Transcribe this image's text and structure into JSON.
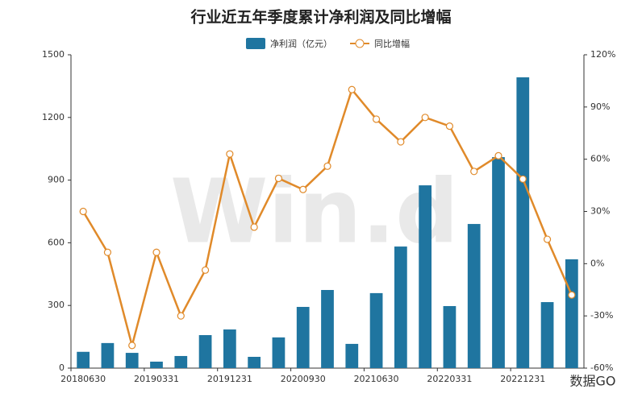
{
  "chart_data": {
    "type": "bar_line",
    "title": "行业近五年季度累计净利润及同比增幅",
    "categories": [
      "20180630",
      null,
      null,
      "20190331",
      null,
      null,
      "20191231",
      null,
      null,
      "20200930",
      null,
      null,
      "20210630",
      null,
      null,
      "20220331",
      null,
      null,
      "20221231",
      null,
      null
    ],
    "series": [
      {
        "name": "净利润（亿元）",
        "type": "bar",
        "color": "#1f75a0",
        "axis": "y",
        "values": [
          78,
          120,
          73,
          31,
          58,
          158,
          185,
          54,
          147,
          293,
          374,
          116,
          359,
          582,
          875,
          297,
          690,
          1010,
          1392,
          316,
          521
        ]
      },
      {
        "name": "同比增幅",
        "type": "line",
        "color": "#e08a2a",
        "axis": "y2",
        "values": [
          30,
          6.5,
          -47,
          6.5,
          -30,
          -3.7,
          63,
          21,
          49,
          42.6,
          56,
          100,
          83,
          70,
          84,
          79,
          53,
          62,
          48.6,
          14,
          -18
        ]
      }
    ],
    "ylim": [
      0,
      1500
    ],
    "yticks": [
      0,
      300,
      600,
      900,
      1200,
      1500
    ],
    "y2lim": [
      -60,
      120
    ],
    "y2ticks": [
      {
        "value": -60,
        "label": "-60%"
      },
      {
        "value": -30,
        "label": "-30%"
      },
      {
        "value": 0,
        "label": "0%"
      },
      {
        "value": 30,
        "label": "30%"
      },
      {
        "value": 60,
        "label": "60%"
      },
      {
        "value": 90,
        "label": "90%"
      },
      {
        "value": 120,
        "label": "120%"
      }
    ],
    "legend": "top",
    "watermark": "Win.d",
    "badge": "数据GO"
  }
}
